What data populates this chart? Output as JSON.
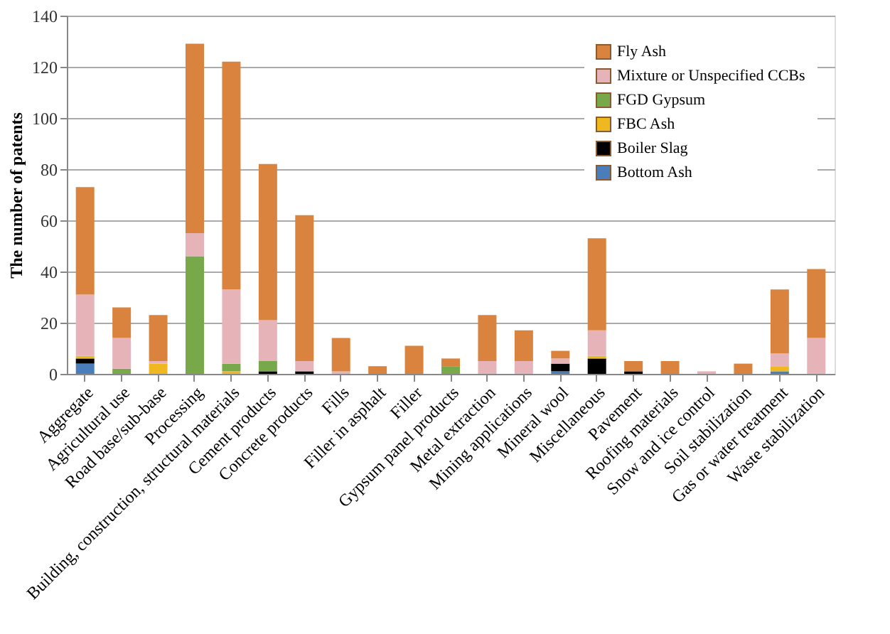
{
  "chart_data": {
    "type": "bar",
    "stacked": true,
    "ylabel": "The number of patents",
    "ylim": [
      0,
      140
    ],
    "yticks": [
      0,
      20,
      40,
      60,
      80,
      100,
      120,
      140
    ],
    "grid": "y",
    "legend": "top right",
    "categories": [
      "Aggregate",
      "Agricultural use",
      "Road base/sub-base",
      "Processing",
      "Building, construction, structural materials",
      "Cement products",
      "Concrete products",
      "Fills",
      "Filler in asphalt",
      "Filler",
      "Gypsum panel products",
      "Metal extraction",
      "Mining applications",
      "Mineral wool",
      "Miscellaneous",
      "Pavement",
      "Roofing materials",
      "Snow and ice control",
      "Soil stabilization",
      "Gas or water treatment",
      "Waste stabilization"
    ],
    "series": [
      {
        "name": "Bottom Ash",
        "color": "#4a7ebb",
        "values": [
          4,
          0,
          0,
          0,
          0,
          0,
          0,
          0,
          0,
          0,
          0,
          0,
          0,
          1,
          0,
          0,
          0,
          0,
          0,
          1,
          0
        ]
      },
      {
        "name": "Boiler Slag",
        "color": "#000000",
        "values": [
          2,
          0,
          0,
          0,
          0,
          1,
          1,
          0,
          0,
          0,
          0,
          0,
          0,
          3,
          6,
          1,
          0,
          0,
          0,
          0,
          0
        ]
      },
      {
        "name": "FBC Ash",
        "color": "#f0b820",
        "values": [
          1,
          0,
          4,
          0,
          1,
          0,
          0,
          0,
          0,
          0,
          0,
          0,
          0,
          0,
          1,
          0,
          0,
          0,
          0,
          2,
          0
        ]
      },
      {
        "name": "FGD Gypsum",
        "color": "#77a84a",
        "values": [
          0,
          2,
          0,
          46,
          3,
          4,
          0,
          0,
          0,
          0,
          3,
          0,
          0,
          0,
          0,
          0,
          0,
          0,
          0,
          0,
          0
        ]
      },
      {
        "name": "Mixture or Unspecified CCBs",
        "color": "#e6b3b8",
        "values": [
          24,
          12,
          1,
          9,
          29,
          16,
          4,
          1,
          0,
          0,
          0,
          5,
          5,
          2,
          10,
          0,
          0,
          1,
          0,
          5,
          14
        ]
      },
      {
        "name": "Fly Ash",
        "color": "#d9833f",
        "values": [
          42,
          12,
          18,
          74,
          89,
          61,
          57,
          13,
          3,
          11,
          3,
          18,
          12,
          3,
          36,
          4,
          5,
          0,
          4,
          25,
          27
        ]
      }
    ]
  }
}
